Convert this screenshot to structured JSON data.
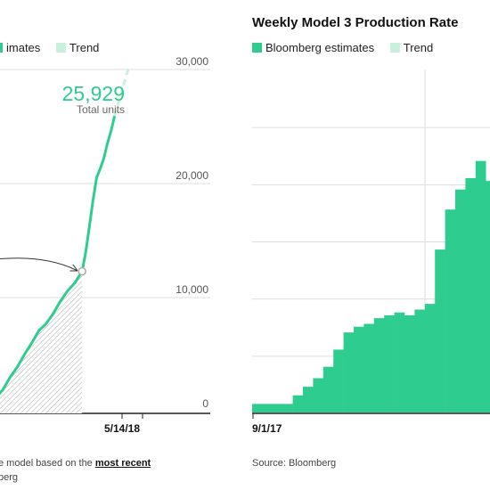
{
  "left_panel": {
    "legend": {
      "estimates_label": "imates",
      "trend_label": "Trend"
    },
    "annotation": {
      "value": "25,929",
      "label": "Total units"
    },
    "footnote": {
      "prefix": "e model based on the ",
      "link": "most recent",
      "source": "berg"
    }
  },
  "right_panel": {
    "title": "Weekly Model 3 Production Rate",
    "legend": {
      "estimates_label": "Bloomberg estimates",
      "trend_label": "Trend"
    },
    "source": "Source: Bloomberg"
  },
  "colors": {
    "estimates": "#2ecc8e",
    "trend": "#c9f0dd",
    "grid": "#dddddd",
    "axis": "#222222"
  },
  "chart_data": [
    {
      "type": "line",
      "title": "",
      "xlabel": "",
      "ylabel": "",
      "ylim": [
        0,
        30000
      ],
      "y_ticks": [
        0,
        10000,
        20000,
        30000
      ],
      "y_tick_labels": [
        "0",
        "10,000",
        "20,000",
        "30,000"
      ],
      "x_tick_labels": [
        "5/14/18"
      ],
      "series": [
        {
          "name": "Bloomberg estimates",
          "x_weeks": [
            0,
            2,
            4,
            6,
            8,
            10,
            12,
            14,
            16,
            18,
            20,
            22,
            24,
            25,
            26,
            27,
            28,
            29,
            30,
            31,
            32,
            33
          ],
          "values": [
            1200,
            1900,
            3000,
            3900,
            5000,
            6000,
            7100,
            7700,
            8600,
            9700,
            10600,
            11300,
            12300,
            14000,
            16200,
            18500,
            20500,
            21300,
            22200,
            23500,
            24600,
            25929
          ]
        },
        {
          "name": "Trend",
          "x_weeks": [
            33,
            34,
            35,
            36,
            37
          ],
          "values": [
            25929,
            27000,
            28100,
            29200,
            30300
          ]
        }
      ],
      "past_area_end_week": 24,
      "marker_point": {
        "x_week": 24,
        "value": 12300
      }
    },
    {
      "type": "bar",
      "title": "Weekly Model 3 Production Rate",
      "ylim": [
        0,
        6000
      ],
      "x_tick_labels": [
        "9/1/17"
      ],
      "series": [
        {
          "name": "Bloomberg estimates",
          "values": [
            150,
            150,
            150,
            150,
            300,
            450,
            600,
            800,
            1100,
            1400,
            1500,
            1550,
            1650,
            1700,
            1750,
            1700,
            1800,
            1900,
            2850,
            3550,
            3900,
            4100,
            4400,
            4050
          ]
        }
      ]
    }
  ]
}
